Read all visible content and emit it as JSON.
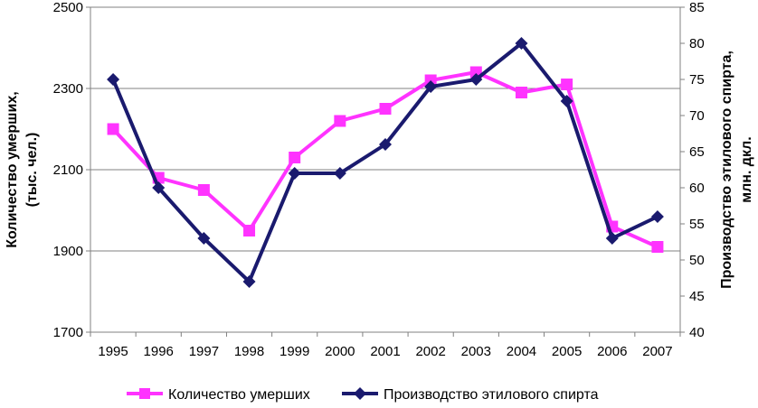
{
  "chart_data": {
    "type": "line",
    "title": "",
    "categories": [
      "1995",
      "1996",
      "1997",
      "1998",
      "1999",
      "2000",
      "2001",
      "2002",
      "2003",
      "2004",
      "2005",
      "2006",
      "2007"
    ],
    "y_left": {
      "label_line1": "Количество умерших,",
      "label_line2": "(тыс. чел.)",
      "lim": [
        1700,
        2500
      ],
      "ticks": [
        1700,
        1900,
        2100,
        2300,
        2500
      ]
    },
    "y_right": {
      "label_line1": "Производство этилового спирта,",
      "label_line2": "млн. дкл.",
      "lim": [
        40,
        85
      ],
      "ticks": [
        40,
        45,
        50,
        55,
        60,
        65,
        70,
        75,
        80,
        85
      ]
    },
    "grid": true,
    "legend_position": "bottom",
    "series": [
      {
        "name": "Количество умерших",
        "axis": "left",
        "color": "#ff33ff",
        "marker": "square",
        "values": [
          2200,
          2080,
          2050,
          1950,
          2130,
          2220,
          2250,
          2320,
          2340,
          2290,
          2310,
          1960,
          1910
        ]
      },
      {
        "name": "Производство этилового спирта",
        "axis": "right",
        "color": "#1a1a6e",
        "marker": "diamond",
        "values": [
          75,
          60,
          53,
          47,
          62,
          62,
          66,
          74,
          75,
          80,
          72,
          53,
          56
        ]
      }
    ]
  }
}
